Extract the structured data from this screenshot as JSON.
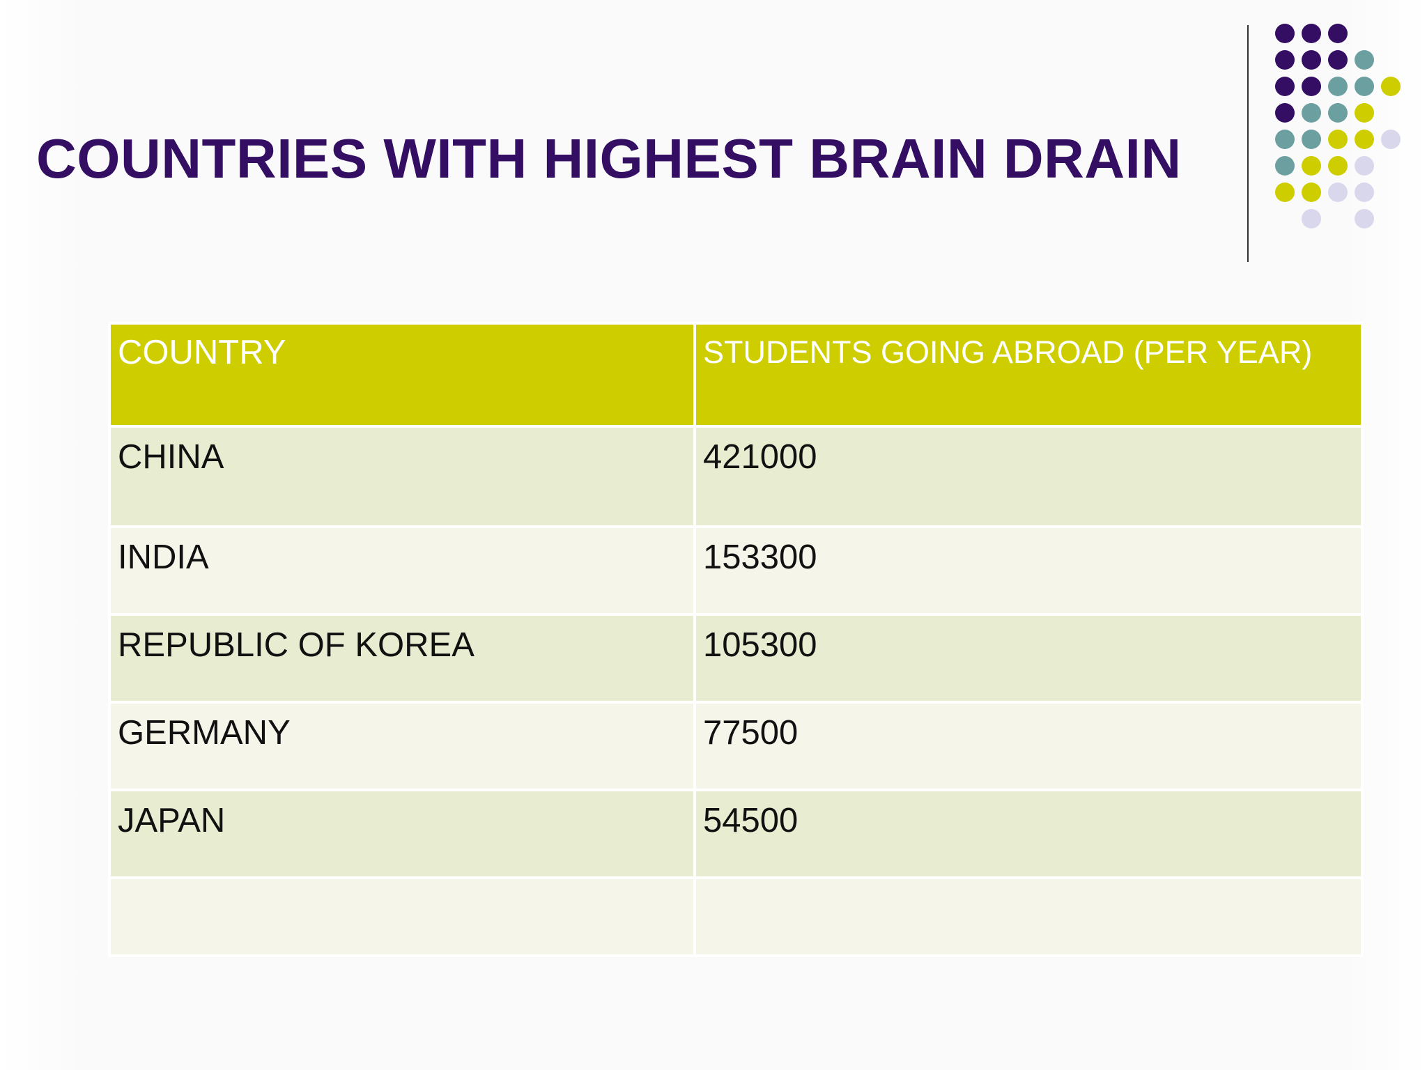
{
  "slide": {
    "title": "COUNTRIES WITH HIGHEST BRAIN DRAIN"
  },
  "colors": {
    "title": "#330e62",
    "header_bg": "#cdcd00",
    "row_odd": "#e8ecd0",
    "row_even": "#f5f6e9",
    "dot_purple": "#330e62",
    "dot_teal": "#6b9fa0",
    "dot_lime": "#cdcd00",
    "dot_lavender": "#d9d7ec"
  },
  "table": {
    "headers": [
      "COUNTRY",
      "STUDENTS GOING ABROAD (PER YEAR)"
    ],
    "rows": [
      [
        "CHINA",
        "421000"
      ],
      [
        "INDIA",
        "153300"
      ],
      [
        "REPUBLIC OF KOREA",
        "105300"
      ],
      [
        "GERMANY",
        "77500"
      ],
      [
        "JAPAN",
        "54500"
      ],
      [
        "",
        ""
      ]
    ]
  },
  "decoration": {
    "dot_grid": [
      [
        "purple",
        "purple",
        "purple",
        "",
        ""
      ],
      [
        "purple",
        "purple",
        "purple",
        "teal",
        ""
      ],
      [
        "purple",
        "purple",
        "teal",
        "teal",
        "lime"
      ],
      [
        "purple",
        "teal",
        "teal",
        "lime",
        ""
      ],
      [
        "teal",
        "teal",
        "lime",
        "lime",
        "lavender"
      ],
      [
        "teal",
        "lime",
        "lime",
        "lavender",
        ""
      ],
      [
        "lime",
        "lime",
        "lavender",
        "lavender",
        ""
      ],
      [
        "",
        "lavender",
        "",
        "lavender",
        ""
      ]
    ]
  }
}
